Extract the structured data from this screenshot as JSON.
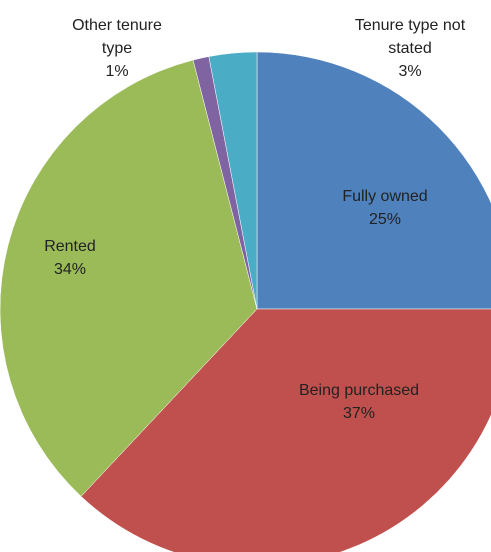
{
  "chart_data": {
    "type": "pie",
    "categories": [
      "Fully owned",
      "Being purchased",
      "Rented",
      "Other tenure type",
      "Tenure type not stated"
    ],
    "values": [
      25,
      37,
      34,
      1,
      3
    ],
    "value_labels": [
      "25%",
      "37%",
      "34%",
      "1%",
      "3%"
    ],
    "colors": [
      "#4f81bd",
      "#c0504d",
      "#9bbb59",
      "#8064a2",
      "#4bacc6"
    ]
  }
}
